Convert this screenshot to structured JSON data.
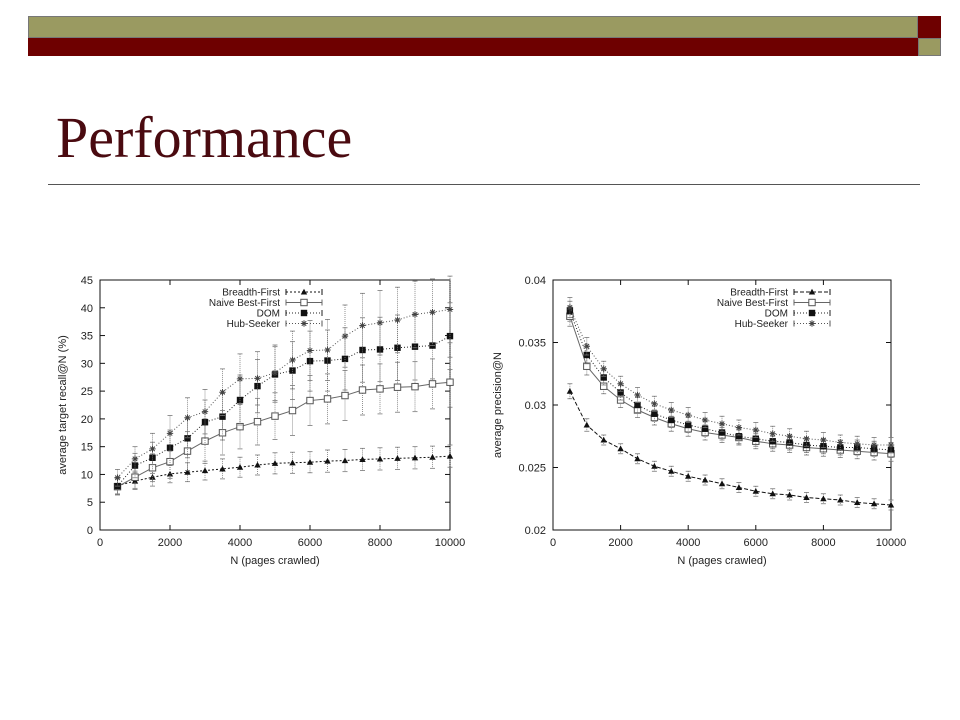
{
  "slide": {
    "title": "Performance",
    "colors": {
      "olive": "#9a9a61",
      "maroon": "#6e0000",
      "title": "#4a0a10"
    }
  },
  "chart_data": [
    {
      "type": "line",
      "xlabel": "N (pages crawled)",
      "ylabel": "average target recall@N (%)",
      "xlim": [
        0,
        10000
      ],
      "ylim": [
        0,
        45
      ],
      "xticks": [
        "0",
        "2000",
        "4000",
        "6000",
        "8000",
        "10000"
      ],
      "yticks": [
        "0",
        "5",
        "10",
        "15",
        "20",
        "25",
        "30",
        "35",
        "40",
        "45"
      ],
      "legend_position": "top-left",
      "grid": false,
      "x": [
        500,
        1000,
        1500,
        2000,
        2500,
        3000,
        3500,
        4000,
        4500,
        5000,
        5500,
        6000,
        6500,
        7000,
        7500,
        8000,
        8500,
        9000,
        9500,
        10000
      ],
      "series": [
        {
          "name": "Breadth-First",
          "marker": "triangle",
          "dash": "2,2",
          "values": [
            8,
            8.8,
            9.5,
            10.1,
            10.4,
            10.7,
            11.0,
            11.3,
            11.7,
            12.0,
            12.1,
            12.2,
            12.4,
            12.5,
            12.7,
            12.8,
            12.9,
            13.0,
            13.1,
            13.3
          ],
          "err": [
            1.5,
            1.5,
            1.6,
            1.6,
            1.7,
            1.7,
            1.8,
            1.8,
            1.8,
            1.9,
            1.9,
            1.9,
            2.0,
            2.0,
            2.0,
            2.0,
            2.0,
            2.0,
            2.0,
            2.0
          ]
        },
        {
          "name": "Naive Best-First",
          "marker": "square-open",
          "dash": "",
          "values": [
            7.8,
            9.5,
            11.2,
            12.3,
            14.2,
            16.0,
            17.5,
            18.6,
            19.5,
            20.5,
            21.5,
            23.3,
            23.6,
            24.2,
            25.2,
            25.4,
            25.7,
            25.8,
            26.3,
            26.6
          ],
          "err": [
            1.5,
            2.0,
            2.5,
            3.0,
            3.5,
            4.0,
            4.0,
            4.0,
            4.2,
            4.2,
            4.5,
            4.5,
            4.5,
            4.5,
            4.5,
            4.5,
            4.5,
            4.5,
            4.5,
            4.5
          ]
        },
        {
          "name": "DOM",
          "marker": "square-filled",
          "dash": "1,2",
          "values": [
            7.9,
            11.6,
            13.0,
            14.8,
            16.5,
            19.4,
            20.4,
            23.4,
            25.9,
            28.0,
            28.7,
            30.4,
            30.5,
            30.8,
            32.4,
            32.5,
            32.8,
            33.0,
            33.2,
            34.9
          ],
          "err": [
            1.5,
            2.2,
            2.8,
            3.2,
            3.5,
            4.0,
            4.2,
            4.5,
            4.8,
            5.0,
            5.2,
            5.4,
            5.5,
            5.6,
            5.8,
            5.8,
            5.9,
            6.0,
            6.0,
            6.0
          ]
        },
        {
          "name": "Hub-Seeker",
          "marker": "star",
          "dash": "1,2",
          "values": [
            9.4,
            12.8,
            14.6,
            17.4,
            20.2,
            21.3,
            24.8,
            27.2,
            27.3,
            28.3,
            30.6,
            32.3,
            32.4,
            34.9,
            36.8,
            37.3,
            37.8,
            38.8,
            39.2,
            39.7
          ],
          "err": [
            1.5,
            2.2,
            2.8,
            3.2,
            3.6,
            4.0,
            4.2,
            4.5,
            4.8,
            5.0,
            5.2,
            5.4,
            5.5,
            5.6,
            5.8,
            5.8,
            5.9,
            6.0,
            6.0,
            6.0
          ]
        }
      ]
    },
    {
      "type": "line",
      "xlabel": "N (pages crawled)",
      "ylabel": "average precision@N",
      "xlim": [
        0,
        10000
      ],
      "ylim": [
        0.02,
        0.04
      ],
      "xticks": [
        "0",
        "2000",
        "4000",
        "6000",
        "8000",
        "10000"
      ],
      "yticks": [
        "0.02",
        "0.025",
        "0.03",
        "0.035",
        "0.04"
      ],
      "legend_position": "top-right",
      "grid": false,
      "x": [
        500,
        1000,
        1500,
        2000,
        2500,
        3000,
        3500,
        4000,
        4500,
        5000,
        5500,
        6000,
        6500,
        7000,
        7500,
        8000,
        8500,
        9000,
        9500,
        10000
      ],
      "series": [
        {
          "name": "Breadth-First",
          "marker": "triangle",
          "dash": "4,2",
          "values": [
            0.0311,
            0.0284,
            0.0272,
            0.0265,
            0.0257,
            0.0251,
            0.0247,
            0.0243,
            0.024,
            0.0237,
            0.0234,
            0.0231,
            0.0229,
            0.0228,
            0.0226,
            0.0225,
            0.0224,
            0.0222,
            0.0221,
            0.022
          ],
          "err": [
            0.0006,
            0.0005,
            0.0004,
            0.0004,
            0.0004,
            0.0004,
            0.0004,
            0.0004,
            0.0004,
            0.0004,
            0.0004,
            0.0004,
            0.0004,
            0.0004,
            0.0004,
            0.0004,
            0.0004,
            0.0004,
            0.0004,
            0.0004
          ]
        },
        {
          "name": "Naive Best-First",
          "marker": "square-open",
          "dash": "",
          "values": [
            0.0371,
            0.0331,
            0.0315,
            0.0304,
            0.0296,
            0.029,
            0.0285,
            0.0281,
            0.0278,
            0.0276,
            0.0274,
            0.0271,
            0.0269,
            0.0268,
            0.0266,
            0.0265,
            0.0264,
            0.0263,
            0.0262,
            0.0261
          ],
          "err": [
            0.0008,
            0.0007,
            0.0006,
            0.0006,
            0.0006,
            0.0006,
            0.0006,
            0.0006,
            0.0006,
            0.0006,
            0.0006,
            0.0006,
            0.0006,
            0.0006,
            0.0006,
            0.0006,
            0.0006,
            0.0006,
            0.0006,
            0.0006
          ]
        },
        {
          "name": "DOM",
          "marker": "square-filled",
          "dash": "1,2",
          "values": [
            0.0375,
            0.034,
            0.0322,
            0.031,
            0.03,
            0.0293,
            0.0288,
            0.0284,
            0.0281,
            0.0278,
            0.0275,
            0.0273,
            0.0271,
            0.027,
            0.0268,
            0.0267,
            0.0266,
            0.0266,
            0.0265,
            0.0264
          ],
          "err": [
            0.0008,
            0.0007,
            0.0006,
            0.0006,
            0.0006,
            0.0006,
            0.0006,
            0.0006,
            0.0006,
            0.0006,
            0.0006,
            0.0006,
            0.0006,
            0.0006,
            0.0006,
            0.0006,
            0.0006,
            0.0006,
            0.0006,
            0.0006
          ]
        },
        {
          "name": "Hub-Seeker",
          "marker": "star",
          "dash": "1,2",
          "values": [
            0.0378,
            0.0347,
            0.0329,
            0.0317,
            0.0308,
            0.0301,
            0.0296,
            0.0292,
            0.0288,
            0.0285,
            0.0282,
            0.028,
            0.0277,
            0.0275,
            0.0273,
            0.0272,
            0.027,
            0.0269,
            0.0268,
            0.0268
          ],
          "err": [
            0.0008,
            0.0007,
            0.0006,
            0.0006,
            0.0006,
            0.0006,
            0.0006,
            0.0006,
            0.0006,
            0.0006,
            0.0006,
            0.0006,
            0.0006,
            0.0006,
            0.0006,
            0.0006,
            0.0006,
            0.0006,
            0.0006,
            0.0006
          ]
        }
      ]
    }
  ]
}
